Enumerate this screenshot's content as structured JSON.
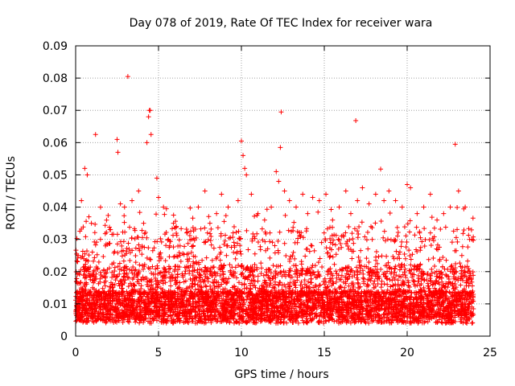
{
  "chart_data": {
    "type": "scatter",
    "title": "Day 078 of 2019, Rate Of TEC Index for receiver wara",
    "xlabel": "GPS time / hours",
    "ylabel": "ROTI / TECUs",
    "xlim": [
      0,
      25
    ],
    "ylim": [
      0,
      0.09
    ],
    "xticks": [
      0,
      5,
      10,
      15,
      20,
      25
    ],
    "yticks": [
      0,
      0.01,
      0.02,
      0.03,
      0.04,
      0.05,
      0.06,
      0.07,
      0.08,
      0.09
    ],
    "xtick_labels": [
      "0",
      "5",
      "10",
      "15",
      "20",
      "25"
    ],
    "ytick_labels": [
      "0",
      "0.01",
      "0.02",
      "0.03",
      "0.04",
      "0.05",
      "0.06",
      "0.07",
      "0.08",
      "0.09"
    ],
    "grid": true,
    "marker": "+",
    "marker_color": "#ff0000",
    "series": [
      {
        "name": "ROTI",
        "x": [
          0.15,
          0.35,
          0.55,
          0.7,
          0.8,
          0.95,
          1.2,
          1.5,
          1.8,
          2.1,
          2.5,
          2.55,
          2.7,
          2.95,
          3.15,
          3.4,
          3.8,
          4.1,
          4.3,
          4.4,
          4.45,
          4.5,
          4.55,
          4.9,
          5.0,
          5.3,
          5.6,
          5.9,
          6.3,
          6.7,
          7.0,
          7.4,
          7.8,
          8.1,
          8.5,
          8.8,
          9.2,
          9.5,
          9.8,
          10.0,
          10.1,
          10.2,
          10.3,
          10.6,
          11.0,
          11.4,
          11.8,
          12.1,
          12.25,
          12.35,
          12.4,
          12.6,
          12.9,
          13.3,
          13.7,
          14.0,
          14.3,
          14.7,
          15.1,
          15.5,
          15.9,
          16.3,
          16.6,
          16.9,
          17.0,
          17.3,
          17.7,
          18.1,
          18.4,
          18.6,
          18.9,
          19.3,
          19.7,
          20.0,
          20.2,
          20.6,
          21.0,
          21.4,
          21.8,
          22.2,
          22.6,
          22.9,
          23.1,
          23.5,
          23.9,
          0.45,
          1.0,
          3.0,
          6.0,
          9.0,
          12.0,
          15.0,
          18.0,
          21.0,
          23.7,
          0.3,
          2.2,
          7.6,
          13.9,
          19.8
        ],
        "y": [
          0.025,
          0.042,
          0.052,
          0.05,
          0.037,
          0.035,
          0.0625,
          0.03,
          0.028,
          0.033,
          0.061,
          0.057,
          0.041,
          0.04,
          0.0805,
          0.042,
          0.045,
          0.035,
          0.06,
          0.068,
          0.07,
          0.07,
          0.0625,
          0.049,
          0.043,
          0.04,
          0.03,
          0.035,
          0.028,
          0.032,
          0.03,
          0.04,
          0.045,
          0.035,
          0.038,
          0.044,
          0.04,
          0.032,
          0.042,
          0.0605,
          0.056,
          0.052,
          0.05,
          0.044,
          0.038,
          0.036,
          0.04,
          0.051,
          0.048,
          0.0585,
          0.0695,
          0.045,
          0.042,
          0.04,
          0.044,
          0.038,
          0.043,
          0.042,
          0.044,
          0.036,
          0.04,
          0.045,
          0.038,
          0.0668,
          0.042,
          0.046,
          0.041,
          0.044,
          0.0518,
          0.042,
          0.045,
          0.042,
          0.04,
          0.047,
          0.046,
          0.038,
          0.04,
          0.044,
          0.036,
          0.038,
          0.04,
          0.0595,
          0.045,
          0.04,
          0.03,
          0.01,
          0.008,
          0.009,
          0.007,
          0.011,
          0.008,
          0.009,
          0.01,
          0.007,
          0.008,
          0.012,
          0.015,
          0.014,
          0.013,
          0.016
        ]
      }
    ]
  }
}
